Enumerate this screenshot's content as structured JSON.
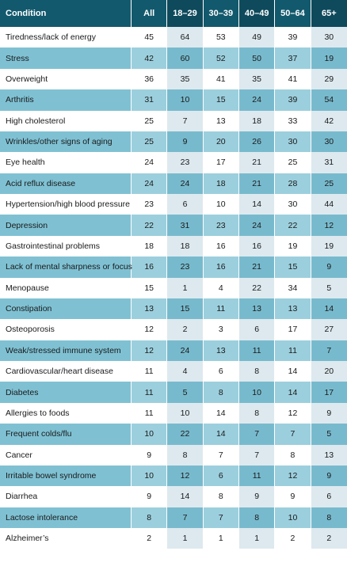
{
  "table": {
    "headers": [
      "Condition",
      "All",
      "18–29",
      "30–39",
      "40–49",
      "50–64",
      "65+"
    ],
    "rows": [
      [
        "Tiredness/lack of energy",
        "45",
        "64",
        "53",
        "49",
        "39",
        "30"
      ],
      [
        "Stress",
        "42",
        "60",
        "52",
        "50",
        "37",
        "19"
      ],
      [
        "Overweight",
        "36",
        "35",
        "41",
        "35",
        "41",
        "29"
      ],
      [
        "Arthritis",
        "31",
        "10",
        "15",
        "24",
        "39",
        "54"
      ],
      [
        "High cholesterol",
        "25",
        "7",
        "13",
        "18",
        "33",
        "42"
      ],
      [
        "Wrinkles/other signs of aging",
        "25",
        "9",
        "20",
        "26",
        "30",
        "30"
      ],
      [
        "Eye health",
        "24",
        "23",
        "17",
        "21",
        "25",
        "31"
      ],
      [
        "Acid reflux disease",
        "24",
        "24",
        "18",
        "21",
        "28",
        "25"
      ],
      [
        "Hypertension/high blood pressure",
        "23",
        "6",
        "10",
        "14",
        "30",
        "44"
      ],
      [
        "Depression",
        "22",
        "31",
        "23",
        "24",
        "22",
        "12"
      ],
      [
        "Gastrointestinal problems",
        "18",
        "18",
        "16",
        "16",
        "19",
        "19"
      ],
      [
        "Lack of mental sharpness or focus",
        "16",
        "23",
        "16",
        "21",
        "15",
        "9"
      ],
      [
        "Menopause",
        "15",
        "1",
        "4",
        "22",
        "34",
        "5"
      ],
      [
        "Constipation",
        "13",
        "15",
        "11",
        "13",
        "13",
        "14"
      ],
      [
        "Osteoporosis",
        "12",
        "2",
        "3",
        "6",
        "17",
        "27"
      ],
      [
        "Weak/stressed immune system",
        "12",
        "24",
        "13",
        "11",
        "11",
        "7"
      ],
      [
        "Cardiovascular/heart disease",
        "11",
        "4",
        "6",
        "8",
        "14",
        "20"
      ],
      [
        "Diabetes",
        "11",
        "5",
        "8",
        "10",
        "14",
        "17"
      ],
      [
        "Allergies to foods",
        "11",
        "10",
        "14",
        "8",
        "12",
        "9"
      ],
      [
        "Frequent colds/flu",
        "10",
        "22",
        "14",
        "7",
        "7",
        "5"
      ],
      [
        "Cancer",
        "9",
        "8",
        "7",
        "7",
        "8",
        "13"
      ],
      [
        "Irritable bowel syndrome",
        "10",
        "12",
        "6",
        "11",
        "12",
        "9"
      ],
      [
        "Diarrhea",
        "9",
        "14",
        "8",
        "9",
        "9",
        "6"
      ],
      [
        "Lactose intolerance",
        "8",
        "7",
        "7",
        "8",
        "10",
        "8"
      ],
      [
        "Alzheimer’s",
        "2",
        "1",
        "1",
        "1",
        "2",
        "2"
      ]
    ]
  }
}
